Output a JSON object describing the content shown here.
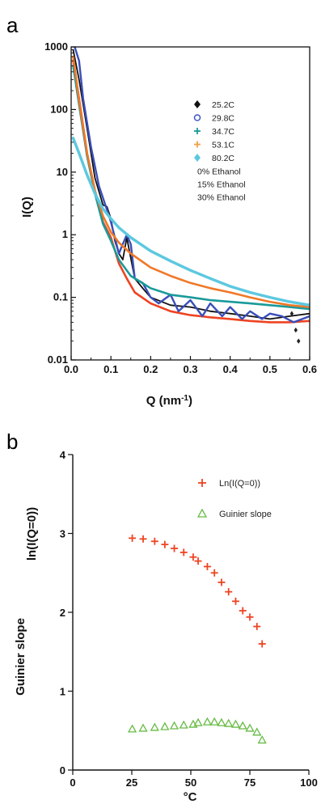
{
  "chart_data": [
    {
      "panel": "a",
      "type": "line",
      "xlabel": "Q (nm",
      "xlabel_sup": "-1",
      "xlabel_end": ")",
      "ylabel": "I(Q)",
      "xlim": [
        0,
        0.6
      ],
      "ylim": [
        0.01,
        1000
      ],
      "yscale": "log",
      "xticks": [
        "0.0",
        "0.1",
        "0.2",
        "0.3",
        "0.4",
        "0.5",
        "0.6"
      ],
      "yticks": [
        "0.01",
        "0.1",
        "1",
        "10",
        "100",
        "1000"
      ],
      "legend_position": "top-right",
      "legend": [
        {
          "label": "25.2C",
          "marker": "diamond-fill",
          "color": "#111111"
        },
        {
          "label": "29.8C",
          "marker": "circle-open",
          "color": "#3b55c8"
        },
        {
          "label": "34.7C",
          "marker": "plus",
          "color": "#1a9a9a"
        },
        {
          "label": "53.1C",
          "marker": "plus",
          "color": "#f0a048"
        },
        {
          "label": "80.2C",
          "marker": "diamond-fill",
          "color": "#5cc8e0"
        }
      ],
      "legend_notes": [
        {
          "label": "0% Ethanol",
          "color": "#ee5533"
        },
        {
          "label": "15% Ethanol",
          "color": "#222222"
        },
        {
          "label": "30% Ethanol",
          "color": "#4466cc"
        }
      ],
      "series": [
        {
          "name": "0% Ethanol",
          "color": "#ee4422",
          "width": 2.6,
          "x": [
            0.005,
            0.02,
            0.04,
            0.06,
            0.08,
            0.1,
            0.12,
            0.14,
            0.16,
            0.2,
            0.25,
            0.3,
            0.35,
            0.4,
            0.45,
            0.5,
            0.55,
            0.6
          ],
          "y": [
            600,
            150,
            20,
            5,
            1.6,
            0.9,
            0.35,
            0.2,
            0.12,
            0.08,
            0.06,
            0.052,
            0.048,
            0.045,
            0.042,
            0.04,
            0.04,
            0.042
          ]
        },
        {
          "name": "15% Ethanol",
          "color": "#111111",
          "width": 1.8,
          "x": [
            0.005,
            0.02,
            0.04,
            0.06,
            0.08,
            0.09,
            0.1,
            0.11,
            0.12,
            0.13,
            0.14,
            0.16,
            0.18,
            0.2,
            0.25,
            0.3,
            0.35,
            0.4,
            0.45,
            0.5,
            0.55,
            0.6
          ],
          "y": [
            900,
            300,
            50,
            8,
            3,
            2.8,
            1.8,
            0.8,
            0.5,
            0.4,
            0.9,
            0.2,
            0.14,
            0.1,
            0.075,
            0.07,
            0.06,
            0.055,
            0.05,
            0.045,
            0.05,
            0.055
          ]
        },
        {
          "name": "30% Ethanol",
          "color": "#3a4fb8",
          "width": 2.4,
          "x": [
            0.005,
            0.02,
            0.03,
            0.05,
            0.07,
            0.09,
            0.1,
            0.12,
            0.14,
            0.15,
            0.16,
            0.18,
            0.2,
            0.22,
            0.25,
            0.27,
            0.3,
            0.33,
            0.35,
            0.38,
            0.4,
            0.43,
            0.45,
            0.48,
            0.5,
            0.53,
            0.56,
            0.6
          ],
          "y": [
            1200,
            600,
            150,
            25,
            6,
            2.5,
            1.6,
            0.5,
            1.0,
            0.7,
            0.2,
            0.17,
            0.1,
            0.08,
            0.11,
            0.06,
            0.09,
            0.05,
            0.08,
            0.05,
            0.07,
            0.045,
            0.06,
            0.045,
            0.055,
            0.05,
            0.04,
            0.05
          ]
        },
        {
          "name": "34.7C",
          "color": "#1a9a9a",
          "width": 2.6,
          "x": [
            0.005,
            0.02,
            0.04,
            0.06,
            0.08,
            0.1,
            0.12,
            0.15,
            0.2,
            0.25,
            0.3,
            0.35,
            0.4,
            0.45,
            0.5,
            0.55,
            0.6
          ],
          "y": [
            500,
            120,
            18,
            4.5,
            1.5,
            0.8,
            0.4,
            0.22,
            0.14,
            0.11,
            0.1,
            0.09,
            0.085,
            0.08,
            0.075,
            0.07,
            0.065
          ]
        },
        {
          "name": "53.1C",
          "color": "#f07828",
          "width": 2.6,
          "x": [
            0.005,
            0.02,
            0.04,
            0.06,
            0.08,
            0.1,
            0.12,
            0.15,
            0.2,
            0.25,
            0.3,
            0.35,
            0.4,
            0.45,
            0.5,
            0.55,
            0.6
          ],
          "y": [
            700,
            140,
            20,
            5,
            2,
            1.1,
            0.75,
            0.5,
            0.3,
            0.22,
            0.17,
            0.14,
            0.12,
            0.1,
            0.085,
            0.075,
            0.07
          ]
        },
        {
          "name": "80.2C",
          "color": "#5cc8e0",
          "width": 3.4,
          "x": [
            0.005,
            0.02,
            0.04,
            0.06,
            0.08,
            0.1,
            0.12,
            0.15,
            0.2,
            0.25,
            0.3,
            0.35,
            0.4,
            0.45,
            0.5,
            0.55,
            0.6
          ],
          "y": [
            35,
            20,
            9,
            4.5,
            2.6,
            1.8,
            1.3,
            0.9,
            0.55,
            0.38,
            0.27,
            0.2,
            0.15,
            0.12,
            0.1,
            0.085,
            0.075
          ]
        }
      ]
    },
    {
      "panel": "b",
      "type": "scatter",
      "xlabel": "°C",
      "ylabel_top": "ln(I(Q=0))",
      "ylabel_bottom": "Guinier slope",
      "xlim": [
        0,
        100
      ],
      "ylim": [
        0,
        4
      ],
      "xticks": [
        "0",
        "25",
        "50",
        "75",
        "100"
      ],
      "yticks": [
        "0",
        "1",
        "2",
        "3",
        "4"
      ],
      "legend_position": "top-right",
      "series": [
        {
          "name": "Ln(I(Q=0))",
          "marker": "plus",
          "color": "#ee4422",
          "x": [
            25.2,
            29.8,
            34.7,
            39,
            43,
            47,
            51,
            53.1,
            57,
            60,
            63,
            66,
            69,
            72,
            75,
            78,
            80.2
          ],
          "y": [
            2.94,
            2.93,
            2.9,
            2.86,
            2.81,
            2.76,
            2.7,
            2.65,
            2.58,
            2.5,
            2.38,
            2.26,
            2.14,
            2.02,
            1.94,
            1.82,
            1.6
          ]
        },
        {
          "name": "Guinier slope",
          "marker": "triangle-open",
          "color": "#66bb44",
          "x": [
            25.2,
            29.8,
            34.7,
            39,
            43,
            47,
            51,
            53.1,
            57,
            60,
            63,
            66,
            69,
            72,
            75,
            78,
            80.2
          ],
          "y": [
            0.52,
            0.53,
            0.54,
            0.55,
            0.56,
            0.57,
            0.58,
            0.6,
            0.61,
            0.61,
            0.6,
            0.59,
            0.58,
            0.56,
            0.53,
            0.48,
            0.38
          ]
        }
      ]
    }
  ],
  "panels": {
    "a": {
      "label": "a"
    },
    "b": {
      "label": "b"
    }
  }
}
